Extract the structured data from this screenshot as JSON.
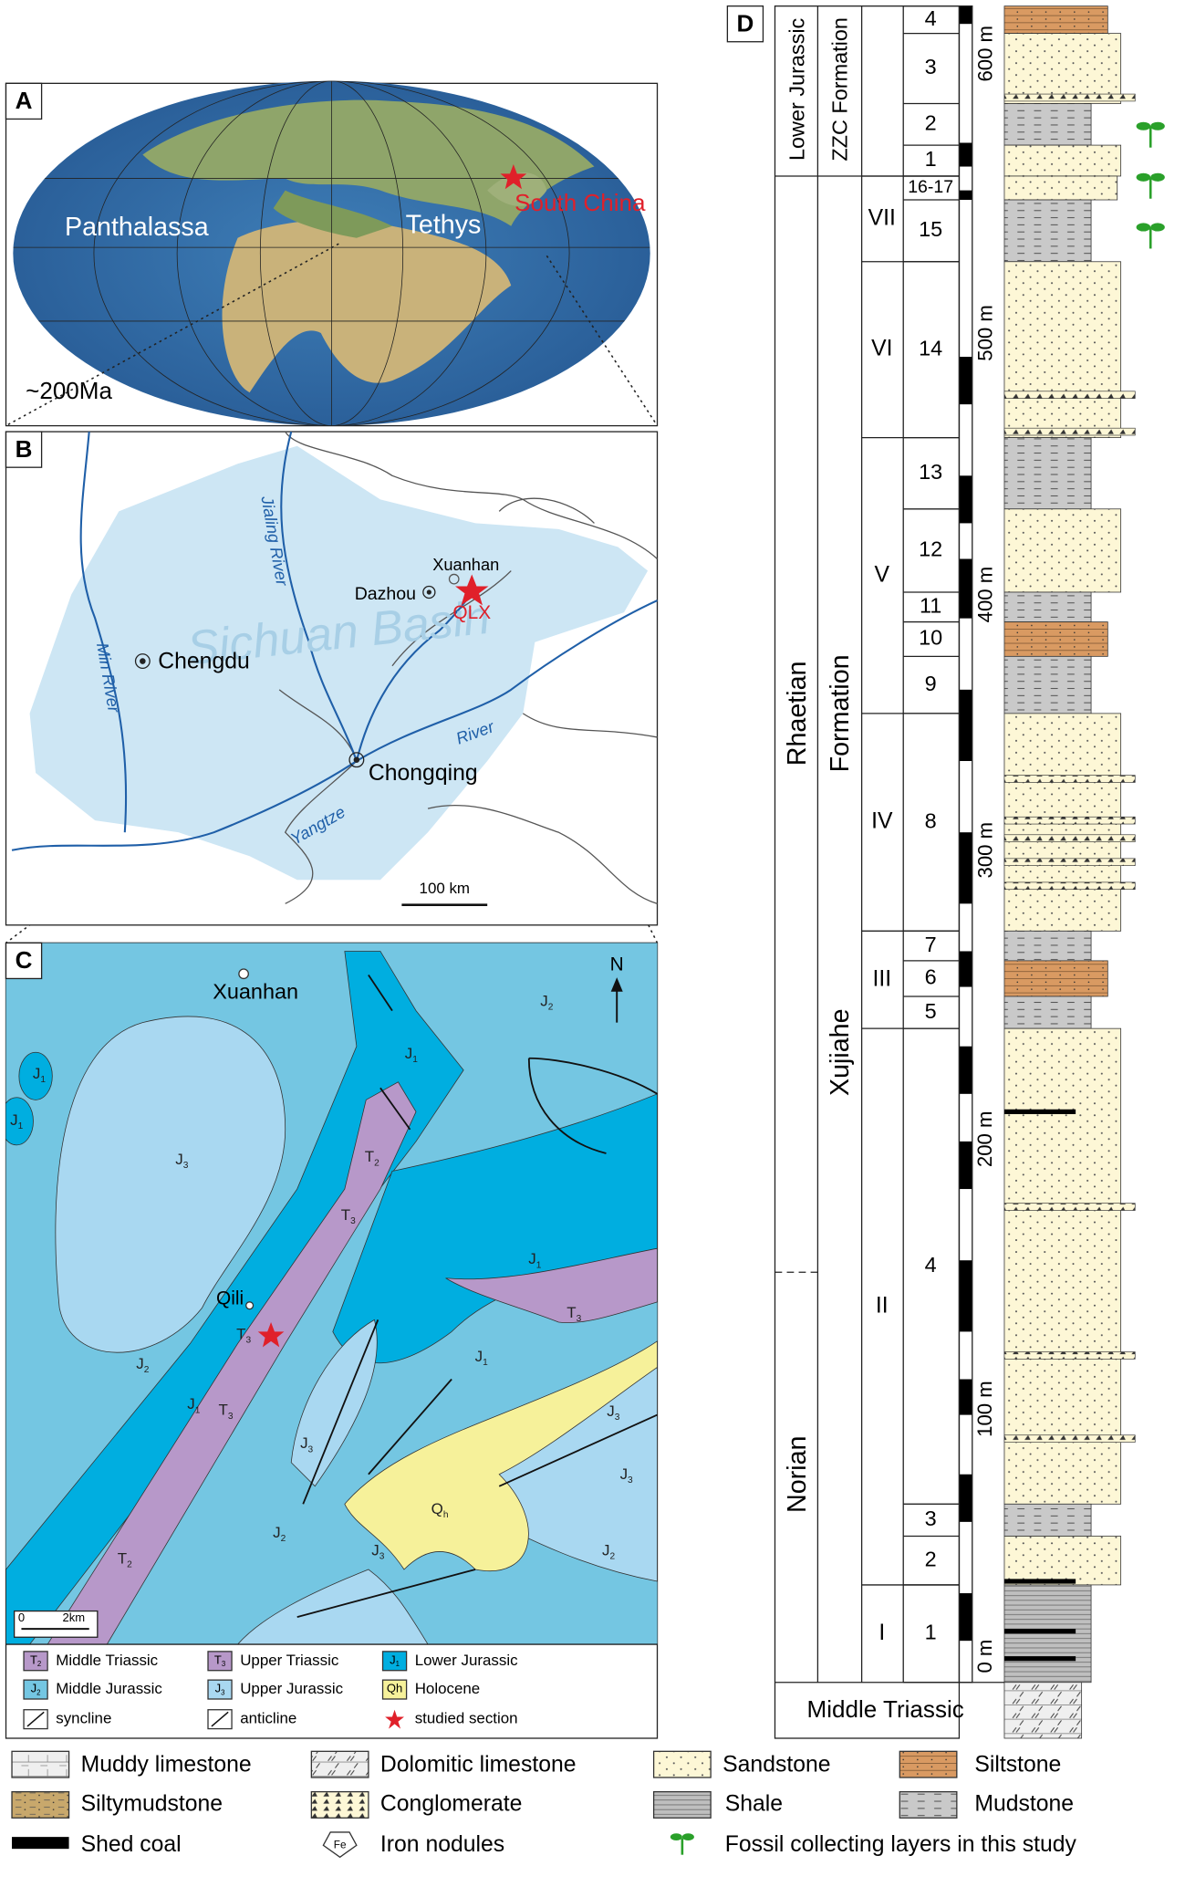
{
  "panel_a": {
    "label": "A",
    "regions": [
      "Panthalassa",
      "Tethys",
      "South China"
    ],
    "age": "~200Ma"
  },
  "panel_b": {
    "label": "B",
    "places": [
      "Xuanhan",
      "Dazhou",
      "QLX",
      "Chengdu",
      "Chongqing"
    ],
    "basin": "Sichuan Basin",
    "rivers": [
      "Jialing River",
      "Min River",
      "Yangtze",
      "River"
    ],
    "scale": "100 km"
  },
  "panel_c": {
    "label": "C",
    "places": [
      "Xuanhan",
      "Qili"
    ],
    "north": "N",
    "unit_labels": [
      {
        "main": "J",
        "sub": "2"
      },
      {
        "main": "J",
        "sub": "1"
      },
      {
        "main": "J",
        "sub": "1"
      },
      {
        "main": "J",
        "sub": "3"
      },
      {
        "main": "T",
        "sub": "2"
      },
      {
        "main": "T",
        "sub": "3"
      },
      {
        "main": "J",
        "sub": "1"
      },
      {
        "main": "J",
        "sub": "1"
      },
      {
        "main": "T",
        "sub": "3"
      },
      {
        "main": "J",
        "sub": "1"
      },
      {
        "main": "T",
        "sub": "3"
      },
      {
        "main": "J",
        "sub": "2"
      },
      {
        "main": "J",
        "sub": "1"
      },
      {
        "main": "T",
        "sub": "3"
      },
      {
        "main": "J",
        "sub": "3"
      },
      {
        "main": "J",
        "sub": "3"
      },
      {
        "main": "J",
        "sub": "3"
      },
      {
        "main": "Q",
        "sub": "h"
      },
      {
        "main": "J",
        "sub": "2"
      },
      {
        "main": "J",
        "sub": "2"
      },
      {
        "main": "J",
        "sub": "3"
      },
      {
        "main": "T",
        "sub": "2"
      }
    ],
    "scale": [
      "0",
      "2km"
    ],
    "legend": [
      {
        "main": "T",
        "sub": "2",
        "text": "Middle Triassic"
      },
      {
        "main": "T",
        "sub": "3",
        "text": "Upper Triassic"
      },
      {
        "main": "J",
        "sub": "1",
        "text": "Lower Jurassic"
      },
      {
        "main": "J",
        "sub": "2",
        "text": "Middle Jurassic"
      },
      {
        "main": "J",
        "sub": "3",
        "text": "Upper Jurassic"
      },
      {
        "main": "Qh",
        "sub": "",
        "text": "Holocene"
      },
      {
        "text": "syncline"
      },
      {
        "text": "anticline"
      },
      {
        "text": "studied section"
      }
    ]
  },
  "panel_d": {
    "label": "D",
    "stages": [
      "Lower Jurassic",
      "Rhaetian",
      "Norian",
      "Middle Triassic"
    ],
    "formations": [
      "ZZC Formation",
      "Xujiahe",
      "Formation"
    ],
    "members": [
      "VII",
      "VI",
      "V",
      "IV",
      "III",
      "II",
      "I"
    ],
    "beds": [
      "4",
      "3",
      "2",
      "1",
      "16-17",
      "15",
      "14",
      "13",
      "12",
      "11",
      "10",
      "9",
      "8",
      "7",
      "6",
      "5",
      "4",
      "3",
      "2",
      "1"
    ],
    "scale": [
      "600 m",
      "500 m",
      "400 m",
      "300 m",
      "200 m",
      "100 m",
      "0 m"
    ]
  },
  "key": {
    "items": [
      "Muddy limestone",
      "Dolomitic limestone",
      "Sandstone",
      "Siltstone",
      "Siltymudstone",
      "Conglomerate",
      "Shale",
      "Mudstone",
      "Shed coal",
      "Iron nodules",
      "Fossil collecting layers in this study"
    ],
    "iron_symbol": "Fe"
  }
}
